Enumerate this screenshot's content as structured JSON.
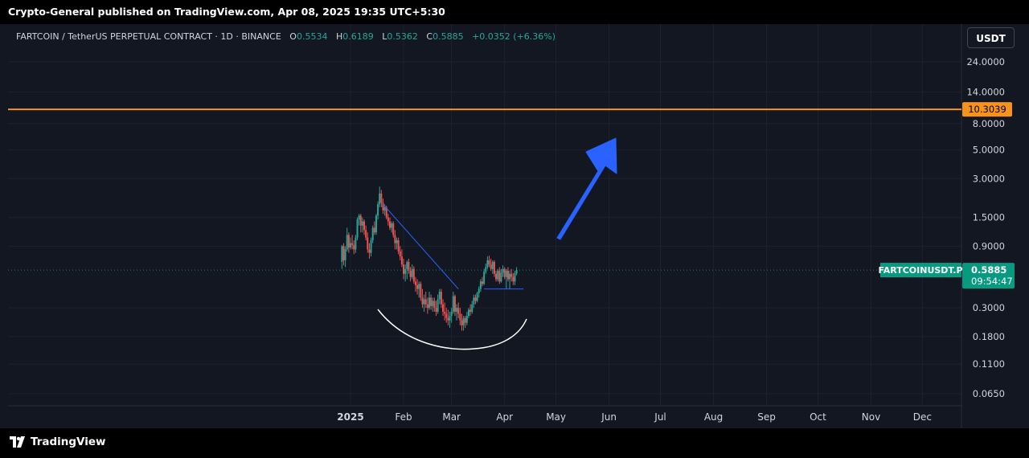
{
  "header": {
    "published": "Crypto-General published on TradingView.com, Apr 08, 2025 19:35 UTC+5:30"
  },
  "footer": {
    "brand": "TradingView"
  },
  "legend": {
    "symbol": "FARTCOIN / TetherUS PERPETUAL CONTRACT · 1D · BINANCE",
    "o_label": "O",
    "o_value": "0.5534",
    "h_label": "H",
    "h_value": "0.6189",
    "l_label": "L",
    "l_value": "0.5362",
    "c_label": "C",
    "c_value": "0.5885",
    "change": "+0.0352 (+6.36%)"
  },
  "currency_button": "USDT",
  "chart_data": {
    "type": "candlestick",
    "scale": "log",
    "y_ticks": [
      "24.0000",
      "14.0000",
      "8.0000",
      "5.0000",
      "3.0000",
      "1.5000",
      "0.9000",
      "0.3000",
      "0.1800",
      "0.1100",
      "0.0650"
    ],
    "y_tick_values": [
      24,
      14,
      8,
      5,
      3,
      1.5,
      0.9,
      0.3,
      0.18,
      0.11,
      0.065
    ],
    "x_ticks": [
      "2025",
      "Feb",
      "Mar",
      "Apr",
      "May",
      "Jun",
      "Jul",
      "Aug",
      "Sep",
      "Oct",
      "Nov",
      "Dec"
    ],
    "horizontal_level": {
      "value": 10.3039,
      "label": "10.3039",
      "color": "#f7931a"
    },
    "price_label": {
      "symbol": "FARTCOINUSDT.P",
      "price": "0.5885",
      "countdown": "09:54:47",
      "value": 0.5885,
      "color": "#089981"
    },
    "colors": {
      "up": "#26a69a",
      "down": "#ef5350",
      "trendline": "#2962ff",
      "arrow": "#2962ff",
      "curve": "#ffffff"
    },
    "trendline": {
      "from": {
        "x": "Jan 20",
        "y": 1.9
      },
      "to": {
        "x": "Mar 05",
        "y": 0.42
      }
    },
    "support_line": {
      "from": {
        "x": "Mar 20",
        "y": 0.42
      },
      "to": {
        "x": "Apr 12",
        "y": 0.42
      },
      "value": 0.42
    },
    "ohlc": [
      {
        "x": "2024-12-27",
        "o": 0.68,
        "h": 0.92,
        "l": 0.6,
        "c": 0.9
      },
      {
        "x": "2024-12-28",
        "o": 0.9,
        "h": 0.95,
        "l": 0.64,
        "c": 0.7
      },
      {
        "x": "2024-12-29",
        "o": 0.7,
        "h": 0.9,
        "l": 0.62,
        "c": 0.85
      },
      {
        "x": "2024-12-30",
        "o": 0.85,
        "h": 1.25,
        "l": 0.82,
        "c": 1.1
      },
      {
        "x": "2024-12-31",
        "o": 1.1,
        "h": 1.15,
        "l": 0.8,
        "c": 0.88
      },
      {
        "x": "2025-01-01",
        "o": 0.88,
        "h": 1.05,
        "l": 0.85,
        "c": 0.95
      },
      {
        "x": "2025-01-02",
        "o": 0.95,
        "h": 1.1,
        "l": 0.85,
        "c": 0.92
      },
      {
        "x": "2025-01-03",
        "o": 0.92,
        "h": 1.0,
        "l": 0.78,
        "c": 0.85
      },
      {
        "x": "2025-01-04",
        "o": 0.85,
        "h": 1.1,
        "l": 0.8,
        "c": 1.05
      },
      {
        "x": "2025-01-05",
        "o": 1.05,
        "h": 1.5,
        "l": 1.0,
        "c": 1.45
      },
      {
        "x": "2025-01-06",
        "o": 1.45,
        "h": 1.6,
        "l": 1.3,
        "c": 1.55
      },
      {
        "x": "2025-01-07",
        "o": 1.55,
        "h": 1.6,
        "l": 1.15,
        "c": 1.3
      },
      {
        "x": "2025-01-08",
        "o": 1.3,
        "h": 1.5,
        "l": 1.15,
        "c": 1.4
      },
      {
        "x": "2025-01-09",
        "o": 1.4,
        "h": 1.45,
        "l": 1.1,
        "c": 1.2
      },
      {
        "x": "2025-01-10",
        "o": 1.2,
        "h": 1.3,
        "l": 1.0,
        "c": 1.05
      },
      {
        "x": "2025-01-11",
        "o": 1.05,
        "h": 1.15,
        "l": 0.8,
        "c": 0.85
      },
      {
        "x": "2025-01-12",
        "o": 0.85,
        "h": 0.95,
        "l": 0.72,
        "c": 0.8
      },
      {
        "x": "2025-01-13",
        "o": 0.8,
        "h": 1.05,
        "l": 0.75,
        "c": 1.0
      },
      {
        "x": "2025-01-14",
        "o": 1.0,
        "h": 1.3,
        "l": 0.95,
        "c": 1.25
      },
      {
        "x": "2025-01-15",
        "o": 1.25,
        "h": 1.4,
        "l": 1.1,
        "c": 1.15
      },
      {
        "x": "2025-01-16",
        "o": 1.15,
        "h": 1.6,
        "l": 1.1,
        "c": 1.55
      },
      {
        "x": "2025-01-17",
        "o": 1.55,
        "h": 2.0,
        "l": 1.45,
        "c": 1.9
      },
      {
        "x": "2025-01-18",
        "o": 1.9,
        "h": 2.6,
        "l": 1.8,
        "c": 2.3
      },
      {
        "x": "2025-01-19",
        "o": 2.3,
        "h": 2.45,
        "l": 1.8,
        "c": 1.95
      },
      {
        "x": "2025-01-20",
        "o": 1.95,
        "h": 2.1,
        "l": 1.6,
        "c": 1.7
      },
      {
        "x": "2025-01-21",
        "o": 1.7,
        "h": 1.9,
        "l": 1.55,
        "c": 1.8
      },
      {
        "x": "2025-01-22",
        "o": 1.8,
        "h": 1.85,
        "l": 1.45,
        "c": 1.5
      },
      {
        "x": "2025-01-23",
        "o": 1.5,
        "h": 1.6,
        "l": 1.3,
        "c": 1.4
      },
      {
        "x": "2025-01-24",
        "o": 1.4,
        "h": 1.5,
        "l": 1.2,
        "c": 1.25
      },
      {
        "x": "2025-01-25",
        "o": 1.25,
        "h": 1.4,
        "l": 1.15,
        "c": 1.35
      },
      {
        "x": "2025-01-26",
        "o": 1.35,
        "h": 1.4,
        "l": 1.05,
        "c": 1.1
      },
      {
        "x": "2025-01-27",
        "o": 1.1,
        "h": 1.2,
        "l": 0.85,
        "c": 0.95
      },
      {
        "x": "2025-01-28",
        "o": 0.95,
        "h": 1.05,
        "l": 0.85,
        "c": 1.0
      },
      {
        "x": "2025-01-29",
        "o": 1.0,
        "h": 1.05,
        "l": 0.78,
        "c": 0.82
      },
      {
        "x": "2025-01-30",
        "o": 0.82,
        "h": 0.9,
        "l": 0.7,
        "c": 0.75
      },
      {
        "x": "2025-01-31",
        "o": 0.75,
        "h": 0.85,
        "l": 0.62,
        "c": 0.65
      },
      {
        "x": "2025-02-01",
        "o": 0.65,
        "h": 0.72,
        "l": 0.5,
        "c": 0.55
      },
      {
        "x": "2025-02-02",
        "o": 0.55,
        "h": 0.65,
        "l": 0.48,
        "c": 0.6
      },
      {
        "x": "2025-02-03",
        "o": 0.6,
        "h": 0.7,
        "l": 0.5,
        "c": 0.68
      },
      {
        "x": "2025-02-04",
        "o": 0.68,
        "h": 0.72,
        "l": 0.55,
        "c": 0.58
      },
      {
        "x": "2025-02-05",
        "o": 0.58,
        "h": 0.62,
        "l": 0.48,
        "c": 0.52
      },
      {
        "x": "2025-02-06",
        "o": 0.52,
        "h": 0.65,
        "l": 0.5,
        "c": 0.6
      },
      {
        "x": "2025-02-07",
        "o": 0.6,
        "h": 0.63,
        "l": 0.46,
        "c": 0.48
      },
      {
        "x": "2025-02-08",
        "o": 0.48,
        "h": 0.52,
        "l": 0.4,
        "c": 0.45
      },
      {
        "x": "2025-02-09",
        "o": 0.45,
        "h": 0.5,
        "l": 0.38,
        "c": 0.42
      },
      {
        "x": "2025-02-10",
        "o": 0.42,
        "h": 0.48,
        "l": 0.36,
        "c": 0.46
      },
      {
        "x": "2025-02-11",
        "o": 0.46,
        "h": 0.48,
        "l": 0.34,
        "c": 0.36
      },
      {
        "x": "2025-02-12",
        "o": 0.36,
        "h": 0.42,
        "l": 0.3,
        "c": 0.32
      },
      {
        "x": "2025-02-13",
        "o": 0.32,
        "h": 0.38,
        "l": 0.28,
        "c": 0.35
      },
      {
        "x": "2025-02-14",
        "o": 0.35,
        "h": 0.4,
        "l": 0.3,
        "c": 0.32
      },
      {
        "x": "2025-02-15",
        "o": 0.32,
        "h": 0.36,
        "l": 0.27,
        "c": 0.3
      },
      {
        "x": "2025-02-16",
        "o": 0.3,
        "h": 0.4,
        "l": 0.29,
        "c": 0.36
      },
      {
        "x": "2025-02-17",
        "o": 0.36,
        "h": 0.38,
        "l": 0.29,
        "c": 0.31
      },
      {
        "x": "2025-02-18",
        "o": 0.31,
        "h": 0.36,
        "l": 0.28,
        "c": 0.34
      },
      {
        "x": "2025-02-19",
        "o": 0.34,
        "h": 0.36,
        "l": 0.28,
        "c": 0.3
      },
      {
        "x": "2025-02-20",
        "o": 0.3,
        "h": 0.34,
        "l": 0.26,
        "c": 0.28
      },
      {
        "x": "2025-02-21",
        "o": 0.28,
        "h": 0.38,
        "l": 0.27,
        "c": 0.35
      },
      {
        "x": "2025-02-22",
        "o": 0.35,
        "h": 0.42,
        "l": 0.32,
        "c": 0.4
      },
      {
        "x": "2025-02-23",
        "o": 0.4,
        "h": 0.42,
        "l": 0.3,
        "c": 0.32
      },
      {
        "x": "2025-02-24",
        "o": 0.32,
        "h": 0.35,
        "l": 0.26,
        "c": 0.28
      },
      {
        "x": "2025-02-25",
        "o": 0.28,
        "h": 0.33,
        "l": 0.24,
        "c": 0.27
      },
      {
        "x": "2025-02-26",
        "o": 0.27,
        "h": 0.3,
        "l": 0.23,
        "c": 0.25
      },
      {
        "x": "2025-02-27",
        "o": 0.25,
        "h": 0.29,
        "l": 0.22,
        "c": 0.24
      },
      {
        "x": "2025-02-28",
        "o": 0.24,
        "h": 0.28,
        "l": 0.21,
        "c": 0.26
      },
      {
        "x": "2025-03-01",
        "o": 0.26,
        "h": 0.3,
        "l": 0.23,
        "c": 0.28
      },
      {
        "x": "2025-03-02",
        "o": 0.28,
        "h": 0.4,
        "l": 0.27,
        "c": 0.37
      },
      {
        "x": "2025-03-03",
        "o": 0.37,
        "h": 0.38,
        "l": 0.26,
        "c": 0.28
      },
      {
        "x": "2025-03-04",
        "o": 0.28,
        "h": 0.32,
        "l": 0.24,
        "c": 0.3
      },
      {
        "x": "2025-03-05",
        "o": 0.3,
        "h": 0.33,
        "l": 0.25,
        "c": 0.27
      },
      {
        "x": "2025-03-06",
        "o": 0.27,
        "h": 0.3,
        "l": 0.22,
        "c": 0.24
      },
      {
        "x": "2025-03-07",
        "o": 0.24,
        "h": 0.27,
        "l": 0.2,
        "c": 0.22
      },
      {
        "x": "2025-03-08",
        "o": 0.22,
        "h": 0.26,
        "l": 0.2,
        "c": 0.25
      },
      {
        "x": "2025-03-09",
        "o": 0.25,
        "h": 0.26,
        "l": 0.21,
        "c": 0.23
      },
      {
        "x": "2025-03-10",
        "o": 0.23,
        "h": 0.28,
        "l": 0.22,
        "c": 0.26
      },
      {
        "x": "2025-03-11",
        "o": 0.26,
        "h": 0.3,
        "l": 0.25,
        "c": 0.29
      },
      {
        "x": "2025-03-12",
        "o": 0.29,
        "h": 0.32,
        "l": 0.26,
        "c": 0.28
      },
      {
        "x": "2025-03-13",
        "o": 0.28,
        "h": 0.34,
        "l": 0.27,
        "c": 0.32
      },
      {
        "x": "2025-03-14",
        "o": 0.32,
        "h": 0.38,
        "l": 0.3,
        "c": 0.36
      },
      {
        "x": "2025-03-15",
        "o": 0.36,
        "h": 0.38,
        "l": 0.32,
        "c": 0.34
      },
      {
        "x": "2025-03-16",
        "o": 0.34,
        "h": 0.4,
        "l": 0.33,
        "c": 0.39
      },
      {
        "x": "2025-03-17",
        "o": 0.39,
        "h": 0.44,
        "l": 0.36,
        "c": 0.42
      },
      {
        "x": "2025-03-18",
        "o": 0.42,
        "h": 0.5,
        "l": 0.4,
        "c": 0.48
      },
      {
        "x": "2025-03-19",
        "o": 0.48,
        "h": 0.52,
        "l": 0.44,
        "c": 0.46
      },
      {
        "x": "2025-03-20",
        "o": 0.46,
        "h": 0.6,
        "l": 0.45,
        "c": 0.57
      },
      {
        "x": "2025-03-21",
        "o": 0.57,
        "h": 0.66,
        "l": 0.55,
        "c": 0.62
      },
      {
        "x": "2025-03-22",
        "o": 0.62,
        "h": 0.75,
        "l": 0.6,
        "c": 0.7
      },
      {
        "x": "2025-03-23",
        "o": 0.7,
        "h": 0.76,
        "l": 0.62,
        "c": 0.65
      },
      {
        "x": "2025-03-24",
        "o": 0.65,
        "h": 0.72,
        "l": 0.58,
        "c": 0.6
      },
      {
        "x": "2025-03-25",
        "o": 0.6,
        "h": 0.7,
        "l": 0.55,
        "c": 0.68
      },
      {
        "x": "2025-03-26",
        "o": 0.68,
        "h": 0.7,
        "l": 0.52,
        "c": 0.55
      },
      {
        "x": "2025-03-27",
        "o": 0.55,
        "h": 0.58,
        "l": 0.48,
        "c": 0.5
      },
      {
        "x": "2025-03-28",
        "o": 0.5,
        "h": 0.6,
        "l": 0.48,
        "c": 0.58
      },
      {
        "x": "2025-03-29",
        "o": 0.58,
        "h": 0.62,
        "l": 0.46,
        "c": 0.48
      },
      {
        "x": "2025-03-30",
        "o": 0.48,
        "h": 0.6,
        "l": 0.47,
        "c": 0.56
      },
      {
        "x": "2025-03-31",
        "o": 0.56,
        "h": 0.64,
        "l": 0.52,
        "c": 0.6
      },
      {
        "x": "2025-04-01",
        "o": 0.6,
        "h": 0.62,
        "l": 0.5,
        "c": 0.52
      },
      {
        "x": "2025-04-02",
        "o": 0.52,
        "h": 0.6,
        "l": 0.42,
        "c": 0.58
      },
      {
        "x": "2025-04-03",
        "o": 0.58,
        "h": 0.62,
        "l": 0.48,
        "c": 0.5
      },
      {
        "x": "2025-04-04",
        "o": 0.5,
        "h": 0.58,
        "l": 0.42,
        "c": 0.55
      },
      {
        "x": "2025-04-05",
        "o": 0.55,
        "h": 0.6,
        "l": 0.48,
        "c": 0.52
      },
      {
        "x": "2025-04-06",
        "o": 0.52,
        "h": 0.56,
        "l": 0.45,
        "c": 0.48
      },
      {
        "x": "2025-04-07",
        "o": 0.48,
        "h": 0.58,
        "l": 0.45,
        "c": 0.5534
      },
      {
        "x": "2025-04-08",
        "o": 0.5534,
        "h": 0.6189,
        "l": 0.5362,
        "c": 0.5885
      }
    ]
  }
}
